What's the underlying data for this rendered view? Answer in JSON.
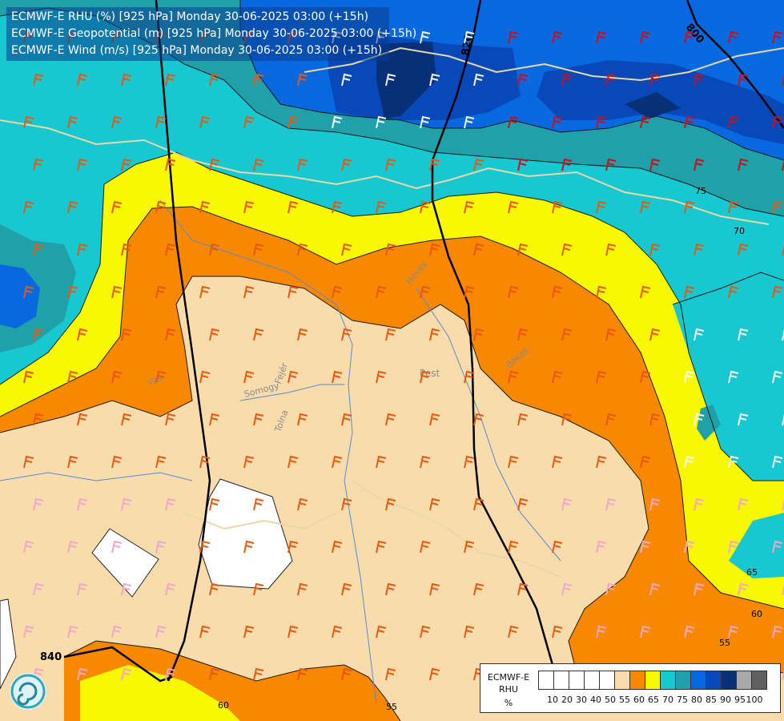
{
  "header": {
    "line1": "ECMWF-E RHU (%) [925 hPa] Monday 30-06-2025 03:00 (+15h)",
    "line2": "ECMWF-E Geopotential (m) [925 hPa] Monday 30-06-2025 03:00 (+15h)",
    "line3": "ECMWF-E Wind (m/s) [925 hPa] Monday 30-06-2025 03:00 (+15h)"
  },
  "legend": {
    "title_lines": [
      "ECMWF-E",
      "RHU",
      "%"
    ],
    "bins": [
      {
        "label": "10",
        "color": "#ffffff"
      },
      {
        "label": "20",
        "color": "#ffffff"
      },
      {
        "label": "30",
        "color": "#ffffff"
      },
      {
        "label": "40",
        "color": "#ffffff"
      },
      {
        "label": "50",
        "color": "#ffffff"
      },
      {
        "label": "55",
        "color": "#f8dcac"
      },
      {
        "label": "60",
        "color": "#f88800"
      },
      {
        "label": "65",
        "color": "#f8f800"
      },
      {
        "label": "70",
        "color": "#18c8d0"
      },
      {
        "label": "75",
        "color": "#20a0a8"
      },
      {
        "label": "80",
        "color": "#0868e0"
      },
      {
        "label": "85",
        "color": "#0848b8"
      },
      {
        "label": "90",
        "color": "#083078"
      },
      {
        "label": "95",
        "color": "#a8a8a8"
      },
      {
        "label": "100",
        "color": "#606060"
      }
    ]
  },
  "geopotential_labels": [
    "800",
    "820",
    "840"
  ],
  "rhu_contour_labels": [
    "55",
    "60",
    "65",
    "70",
    "75"
  ],
  "region_labels": [
    "Pest",
    "Heves",
    "Békés",
    "Somogy",
    "Fejér",
    "Tolna",
    "Vas"
  ],
  "colors": {
    "rh55": "#f8dcac",
    "rh60": "#f88800",
    "rh65": "#f8f800",
    "rh70": "#18c8d0",
    "rh75": "#20a0a8",
    "rh80": "#0868e0",
    "rh85": "#0848b8",
    "rh90": "#083078",
    "white": "#ffffff",
    "barb_orange": "#e85810",
    "barb_red": "#c81020",
    "barb_pink": "#f0a8c8",
    "barb_white": "#f4f4f4"
  },
  "icons": {
    "logo": "ecmwf-spiral-logo"
  }
}
